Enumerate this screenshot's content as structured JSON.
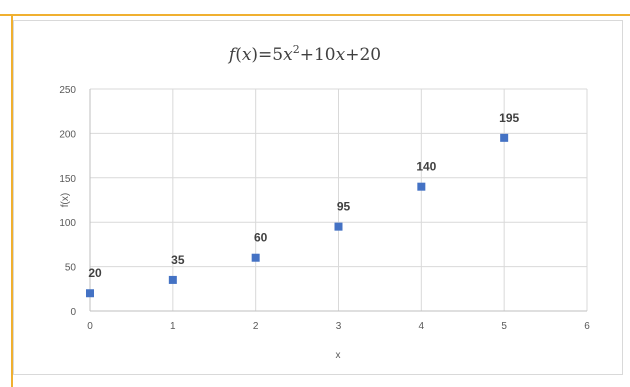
{
  "chart_data": {
    "type": "scatter",
    "title": "f(x)=5x²+10x+20",
    "title_parts": {
      "func": "f",
      "open_paren": "(",
      "var": "x",
      "close_and_eq": ")=5",
      "var2": "x",
      "exponent": "2",
      "plus10": "+10",
      "var3": "x",
      "plus20": "+20"
    },
    "xlabel": "x",
    "ylabel": "f(x)",
    "xlim": [
      0,
      6
    ],
    "ylim": [
      0,
      250
    ],
    "x_ticks": [
      0,
      1,
      2,
      3,
      4,
      5,
      6
    ],
    "y_ticks": [
      0,
      50,
      100,
      150,
      200,
      250
    ],
    "grid": true,
    "legend": "none",
    "series": [
      {
        "x": [
          0,
          1,
          2,
          3,
          4,
          5
        ],
        "y": [
          20,
          35,
          60,
          95,
          140,
          195
        ],
        "labels": [
          "20",
          "35",
          "60",
          "95",
          "140",
          "195"
        ],
        "color": "#4472c4",
        "marker": "square"
      }
    ]
  },
  "colors": {
    "frame_accent": "#f0b030",
    "gridline": "#d9d9d9",
    "marker": "#4472c4"
  }
}
